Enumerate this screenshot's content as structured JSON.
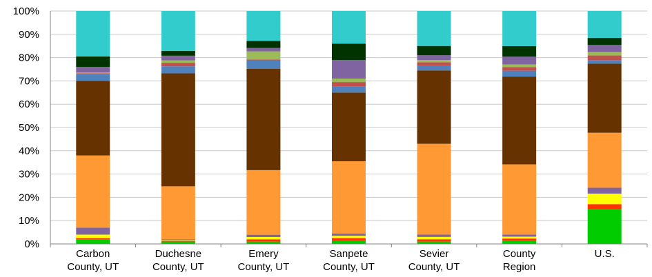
{
  "chart_data": {
    "type": "bar",
    "stacked": true,
    "percent_stacked": true,
    "title": "",
    "xlabel": "",
    "ylabel": "",
    "ylim": [
      0,
      100
    ],
    "y_ticks": [
      "0%",
      "10%",
      "20%",
      "30%",
      "40%",
      "50%",
      "60%",
      "70%",
      "80%",
      "90%",
      "100%"
    ],
    "grid": true,
    "legend": "none",
    "categories": [
      [
        "Carbon",
        "County, UT"
      ],
      [
        "Duchesne",
        "County, UT"
      ],
      [
        "Emery",
        "County, UT"
      ],
      [
        "Sanpete",
        "County, UT"
      ],
      [
        "Sevier",
        "County, UT"
      ],
      [
        "County",
        "Region"
      ],
      [
        "U.S."
      ]
    ],
    "series": [
      {
        "color": "#00cc00",
        "values": [
          2.0,
          1.0,
          1.0,
          1.5,
          1.0,
          1.5,
          15.0
        ]
      },
      {
        "color": "#ff3300",
        "values": [
          0.5,
          0.3,
          1.0,
          1.0,
          1.0,
          0.8,
          2.0
        ]
      },
      {
        "color": "#ffff00",
        "values": [
          1.5,
          0.3,
          1.0,
          1.0,
          1.0,
          0.8,
          4.5
        ]
      },
      {
        "color": "#8064a2",
        "values": [
          3.0,
          0.4,
          1.0,
          1.0,
          1.0,
          0.9,
          2.5
        ]
      },
      {
        "color": "#ff9933",
        "values": [
          31.0,
          22.5,
          28.0,
          31.0,
          39.0,
          30.0,
          23.5
        ]
      },
      {
        "color": "#663300",
        "values": [
          32.0,
          48.0,
          44.0,
          29.5,
          31.5,
          37.5,
          29.5
        ]
      },
      {
        "color": "#4f81bd",
        "values": [
          3.0,
          3.0,
          3.5,
          2.5,
          2.0,
          2.5,
          1.5
        ]
      },
      {
        "color": "#c0504d",
        "values": [
          0.3,
          1.5,
          0.5,
          2.0,
          1.5,
          1.5,
          2.0
        ]
      },
      {
        "color": "#9bbb59",
        "values": [
          0.3,
          1.0,
          3.5,
          1.5,
          1.0,
          1.2,
          1.5
        ]
      },
      {
        "color": "#8064a2",
        "values": [
          2.4,
          2.0,
          1.5,
          8.0,
          2.0,
          3.3,
          3.0
        ]
      },
      {
        "color": "#003300",
        "values": [
          4.5,
          2.0,
          3.0,
          7.0,
          4.0,
          4.5,
          3.0
        ]
      },
      {
        "color": "#33cccc",
        "values": [
          19.5,
          17.0,
          13.0,
          14.0,
          15.0,
          15.0,
          11.5
        ]
      }
    ]
  }
}
